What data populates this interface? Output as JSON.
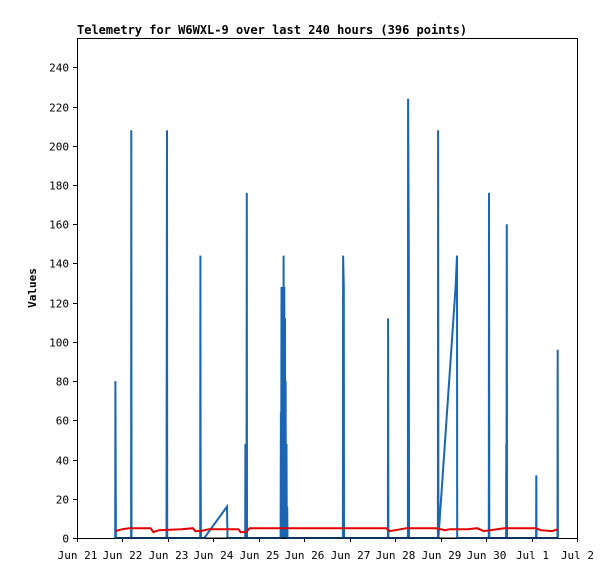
{
  "chart_data": {
    "type": "line",
    "title": "Telemetry for W6WXL-9 over last 240 hours (396 points)",
    "xlabel": "",
    "ylabel": "Values",
    "grid": false,
    "legend": "none",
    "ylim": [
      0,
      255
    ],
    "y_ticks": [
      0,
      20,
      40,
      60,
      80,
      100,
      120,
      140,
      160,
      180,
      200,
      220,
      240
    ],
    "x_range_days": [
      21,
      32
    ],
    "x_ticks": [
      {
        "day": 21,
        "label": "Jun 21"
      },
      {
        "day": 22,
        "label": "Jun 22"
      },
      {
        "day": 23,
        "label": "Jun 23"
      },
      {
        "day": 24,
        "label": "Jun 24"
      },
      {
        "day": 25,
        "label": "Jun 25"
      },
      {
        "day": 26,
        "label": "Jun 26"
      },
      {
        "day": 27,
        "label": "Jun 27"
      },
      {
        "day": 28,
        "label": "Jun 28"
      },
      {
        "day": 29,
        "label": "Jun 29"
      },
      {
        "day": 30,
        "label": "Jun 30"
      },
      {
        "day": 31,
        "label": "Jul 1"
      },
      {
        "day": 32,
        "label": "Jul 2"
      }
    ],
    "colors": {
      "series_blue": "#1a66b3",
      "series_red": "#e00000",
      "series_black": "#000000"
    },
    "series": [
      {
        "color": "#1a66b3",
        "points": [
          [
            21.84,
            0
          ],
          [
            21.845,
            80
          ],
          [
            21.85,
            48
          ],
          [
            21.855,
            0
          ],
          [
            22.19,
            0
          ],
          [
            22.195,
            208
          ],
          [
            22.2,
            0
          ],
          [
            22.97,
            0
          ],
          [
            22.975,
            120
          ],
          [
            22.98,
            208
          ],
          [
            22.985,
            0
          ],
          [
            23.71,
            0
          ],
          [
            23.715,
            144
          ],
          [
            23.72,
            40
          ],
          [
            23.725,
            0
          ],
          [
            23.8,
            0
          ],
          [
            24.3,
            16
          ],
          [
            24.31,
            0
          ],
          [
            24.7,
            0
          ],
          [
            24.705,
            48
          ],
          [
            24.73,
            0
          ],
          [
            24.735,
            176
          ],
          [
            24.74,
            0
          ],
          [
            25.48,
            0
          ],
          [
            25.485,
            64
          ],
          [
            25.49,
            0
          ],
          [
            25.5,
            128
          ],
          [
            25.505,
            0
          ],
          [
            25.515,
            128
          ],
          [
            25.52,
            0
          ],
          [
            25.53,
            128
          ],
          [
            25.535,
            0
          ],
          [
            25.545,
            144
          ],
          [
            25.55,
            0
          ],
          [
            25.56,
            128
          ],
          [
            25.565,
            0
          ],
          [
            25.575,
            112
          ],
          [
            25.58,
            0
          ],
          [
            25.59,
            80
          ],
          [
            25.595,
            0
          ],
          [
            25.61,
            48
          ],
          [
            25.615,
            0
          ],
          [
            25.625,
            16
          ],
          [
            25.63,
            0
          ],
          [
            26.85,
            0
          ],
          [
            26.855,
            144
          ],
          [
            26.87,
            128
          ],
          [
            26.875,
            0
          ],
          [
            27.84,
            0
          ],
          [
            27.845,
            112
          ],
          [
            27.85,
            0
          ],
          [
            28.28,
            0
          ],
          [
            28.285,
            224
          ],
          [
            28.3,
            144
          ],
          [
            28.305,
            0
          ],
          [
            28.94,
            0
          ],
          [
            28.945,
            208
          ],
          [
            28.95,
            0
          ],
          [
            29.33,
            128
          ],
          [
            29.36,
            144
          ],
          [
            29.365,
            0
          ],
          [
            30.06,
            0
          ],
          [
            30.065,
            176
          ],
          [
            30.07,
            0
          ],
          [
            30.44,
            0
          ],
          [
            30.445,
            48
          ],
          [
            30.45,
            0
          ],
          [
            30.455,
            160
          ],
          [
            30.46,
            0
          ],
          [
            31.1,
            0
          ],
          [
            31.105,
            32
          ],
          [
            31.11,
            0
          ],
          [
            31.57,
            0
          ],
          [
            31.575,
            96
          ],
          [
            31.58,
            0
          ]
        ]
      },
      {
        "color": "#e00000",
        "points": [
          [
            21.84,
            3.5
          ],
          [
            22.0,
            4.5
          ],
          [
            22.15,
            5
          ],
          [
            22.62,
            5
          ],
          [
            22.68,
            3
          ],
          [
            22.8,
            4
          ],
          [
            23.3,
            4.5
          ],
          [
            23.55,
            5
          ],
          [
            23.6,
            3.5
          ],
          [
            23.72,
            3.5
          ],
          [
            23.9,
            4.5
          ],
          [
            24.55,
            4.5
          ],
          [
            24.6,
            3
          ],
          [
            24.72,
            3
          ],
          [
            24.8,
            5
          ],
          [
            27.8,
            5
          ],
          [
            27.88,
            3.5
          ],
          [
            28.0,
            4
          ],
          [
            28.25,
            5
          ],
          [
            28.9,
            5
          ],
          [
            29.1,
            4
          ],
          [
            29.2,
            4.5
          ],
          [
            29.6,
            4.5
          ],
          [
            29.8,
            5
          ],
          [
            29.95,
            3.5
          ],
          [
            30.4,
            5
          ],
          [
            31.1,
            5
          ],
          [
            31.2,
            4
          ],
          [
            31.45,
            3.5
          ],
          [
            31.58,
            4.5
          ]
        ]
      },
      {
        "color": "#000000",
        "points": [
          [
            21.84,
            0
          ],
          [
            31.58,
            0
          ]
        ]
      }
    ]
  }
}
